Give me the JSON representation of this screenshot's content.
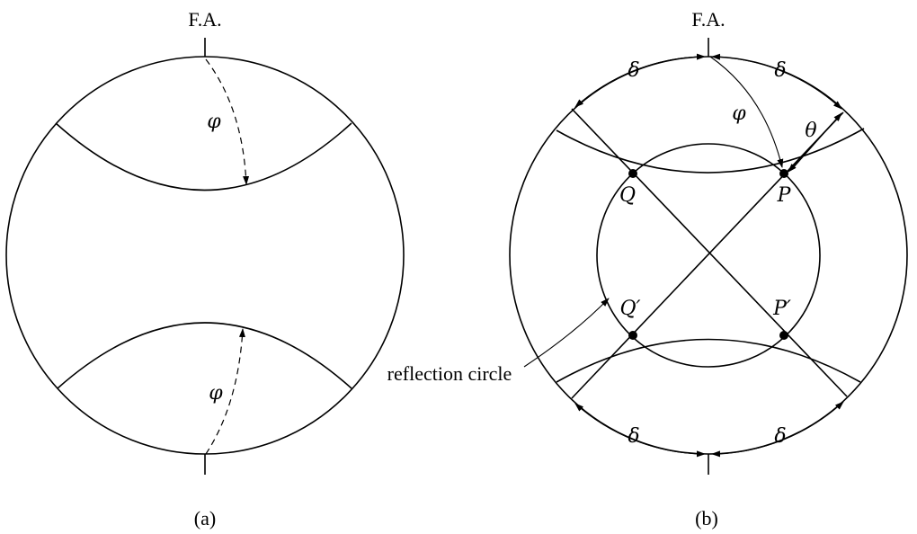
{
  "panel_a": {
    "fa_label": "F.A.",
    "phi_top": "φ",
    "phi_bottom": "φ",
    "caption": "(a)"
  },
  "panel_b": {
    "fa_label": "F.A.",
    "delta_top_left": "δ",
    "delta_top_right": "δ",
    "delta_bottom_left": "δ",
    "delta_bottom_right": "δ",
    "phi": "φ",
    "theta": "θ",
    "point_q": "Q",
    "point_p": "P",
    "point_q_prime": "Q′",
    "point_p_prime": "P′",
    "reflection_label": "reflection circle",
    "caption": "(b)"
  }
}
